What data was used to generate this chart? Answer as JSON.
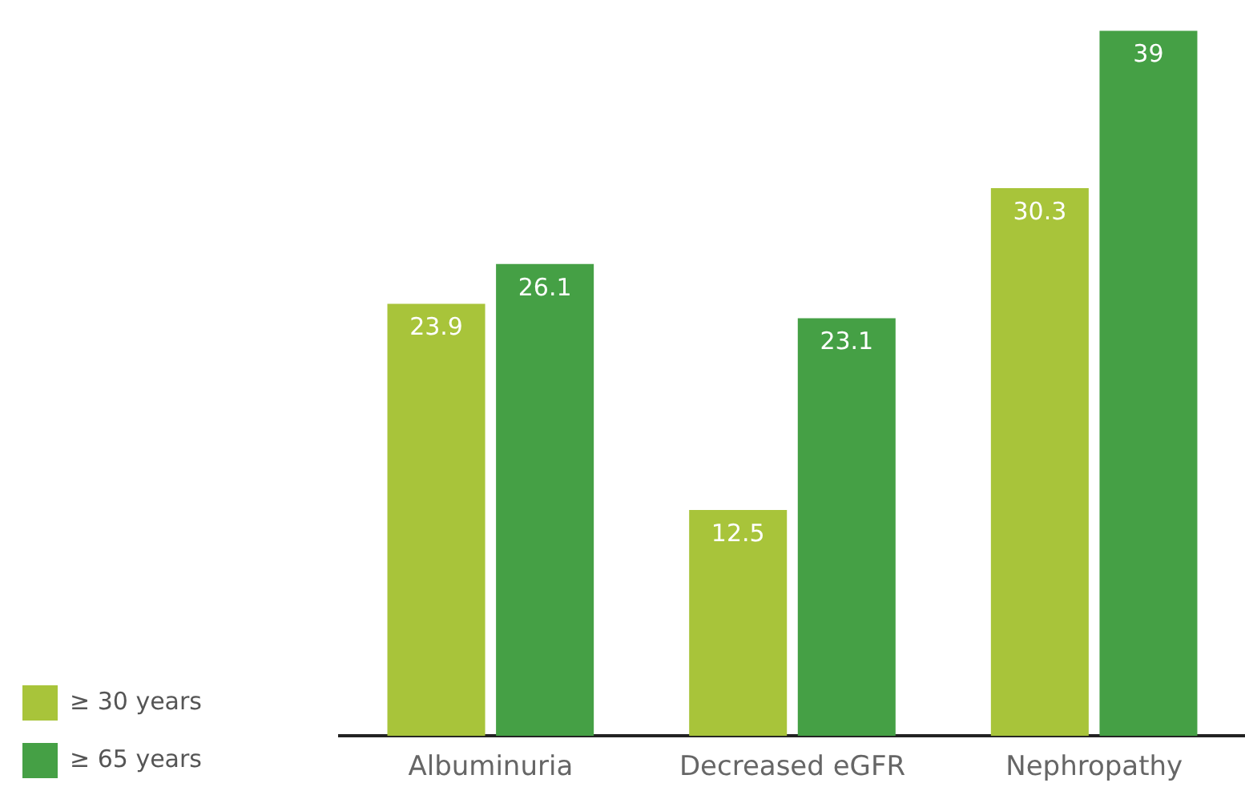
{
  "chart_data": {
    "type": "bar",
    "categories": [
      "Albuminuria",
      "Decreased eGFR",
      "Nephropathy"
    ],
    "series": [
      {
        "name": "≥ 30 years",
        "color": "#a8c43a",
        "values": [
          23.9,
          12.5,
          30.3
        ]
      },
      {
        "name": "≥ 65 years",
        "color": "#45a045",
        "values": [
          26.1,
          23.1,
          39.0
        ]
      }
    ],
    "data_labels": true,
    "legend": "bottom left",
    "grid": false
  }
}
